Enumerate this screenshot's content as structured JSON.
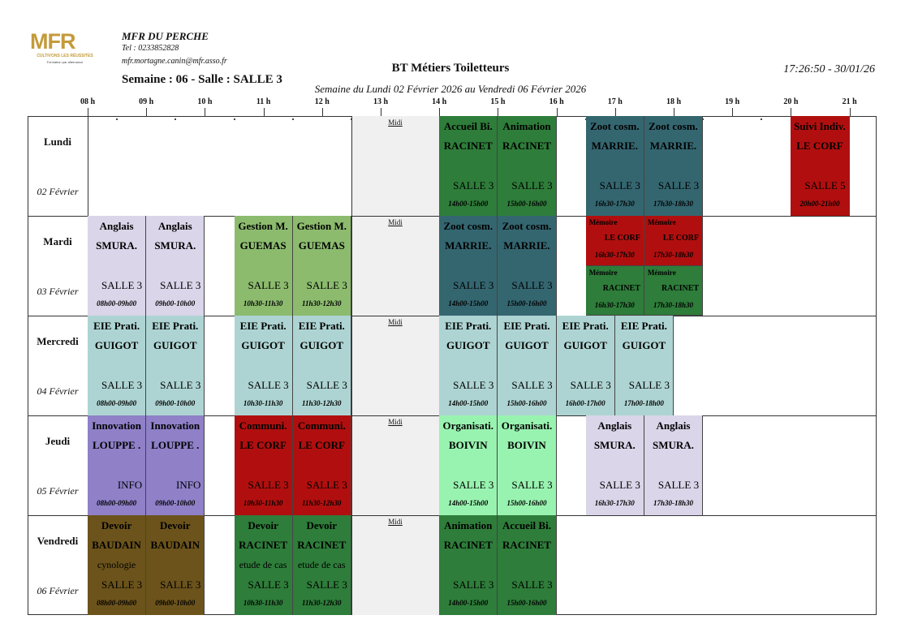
{
  "header": {
    "logo_text": "MFR",
    "logo_tagline": "CULTIVONS LES RÉUSSITES",
    "logo_subline": "Formation par alternance",
    "school_name": "MFR DU PERCHE",
    "tel": "Tel : 0233852828",
    "email": "mfr.mortagne.canin@mfr.asso.fr",
    "semaine": "Semaine : 06 - Salle : SALLE 3",
    "title": "BT Métiers Toiletteurs",
    "subtitle": "Semaine du Lundi 02 Février 2026 au Vendredi 06 Février 2026",
    "timestamp": "17:26:50 - 30/01/26"
  },
  "hours": [
    "08 h",
    "09 h",
    "10 h",
    "11 h",
    "12 h",
    "13 h",
    "14 h",
    "15 h",
    "16 h",
    "17 h",
    "18 h",
    "19 h",
    "20 h",
    "21 h"
  ],
  "midi_label": "Midi",
  "colors": {
    "blue_grey": "#dad5e9",
    "green_light": "#8cbb6e",
    "green_dark": "#2e7d3a",
    "teal_dark": "#346670",
    "teal_light": "#add4d2",
    "purple": "#8f80c8",
    "red": "#b10f0f",
    "mint": "#99f3b0",
    "brown": "#6b531b",
    "midi": "#f0f0f0"
  },
  "days": [
    {
      "name": "Lundi",
      "date": "02 Février",
      "events": [
        {
          "start": 14,
          "end": 15,
          "subject": "Accueil Bi.",
          "teacher": "RACINET",
          "extra": "",
          "room": "SALLE 3",
          "time": "14h00-15h00",
          "color": "#2e7d3a",
          "text_color": "#000"
        },
        {
          "start": 15,
          "end": 16,
          "subject": "Animation",
          "teacher": "RACINET",
          "extra": "",
          "room": "SALLE 3",
          "time": "15h00-16h00",
          "color": "#2e7d3a",
          "text_color": "#000"
        },
        {
          "start": 16.5,
          "end": 17.5,
          "subject": "Zoot cosm.",
          "teacher": "MARRIE.",
          "extra": "",
          "room": "SALLE 3",
          "time": "16h30-17h30",
          "color": "#346670",
          "text_color": "#000"
        },
        {
          "start": 17.5,
          "end": 18.5,
          "subject": "Zoot cosm.",
          "teacher": "MARRIE.",
          "extra": "",
          "room": "SALLE 3",
          "time": "17h30-18h30",
          "color": "#346670",
          "text_color": "#000"
        },
        {
          "start": 20,
          "end": 21,
          "subject": "Suivi Indiv.",
          "teacher": "LE CORF",
          "extra": "",
          "room": "SALLE 5",
          "time": "20h00-21h00",
          "color": "#b10f0f",
          "text_color": "#000"
        }
      ]
    },
    {
      "name": "Mardi",
      "date": "03 Février",
      "events": [
        {
          "start": 8,
          "end": 9,
          "subject": "Anglais",
          "teacher": "SMURA.",
          "extra": "",
          "room": "SALLE 3",
          "time": "08h00-09h00",
          "color": "#dad5e9",
          "text_color": "#000"
        },
        {
          "start": 9,
          "end": 10,
          "subject": "Anglais",
          "teacher": "SMURA.",
          "extra": "",
          "room": "SALLE 3",
          "time": "09h00-10h00",
          "color": "#dad5e9",
          "text_color": "#000"
        },
        {
          "start": 10.5,
          "end": 11.5,
          "subject": "Gestion M.",
          "teacher": "GUEMAS",
          "extra": "",
          "room": "SALLE 3",
          "time": "10h30-11h30",
          "color": "#8cbb6e",
          "text_color": "#000"
        },
        {
          "start": 11.5,
          "end": 12.5,
          "subject": "Gestion M.",
          "teacher": "GUEMAS",
          "extra": "",
          "room": "SALLE 3",
          "time": "11h30-12h30",
          "color": "#8cbb6e",
          "text_color": "#000"
        },
        {
          "start": 14,
          "end": 15,
          "subject": "Zoot cosm.",
          "teacher": "MARRIE.",
          "extra": "",
          "room": "SALLE 3",
          "time": "14h00-15h00",
          "color": "#346670",
          "text_color": "#000"
        },
        {
          "start": 15,
          "end": 16,
          "subject": "Zoot cosm.",
          "teacher": "MARRIE.",
          "extra": "",
          "room": "SALLE 3",
          "time": "15h00-16h00",
          "color": "#346670",
          "text_color": "#000"
        }
      ],
      "half_events": [
        {
          "start": 16.5,
          "end": 17.5,
          "slot": 0,
          "subject": "Mémoire",
          "teacher": "LE CORF",
          "time": "16h30-17h30",
          "color": "#b10f0f",
          "text_color": "#000"
        },
        {
          "start": 17.5,
          "end": 18.5,
          "slot": 0,
          "subject": "Mémoire",
          "teacher": "LE CORF",
          "time": "17h30-18h30",
          "color": "#b10f0f",
          "text_color": "#000"
        },
        {
          "start": 16.5,
          "end": 17.5,
          "slot": 1,
          "subject": "Mémoire",
          "teacher": "RACINET",
          "time": "16h30-17h30",
          "color": "#2e7d3a",
          "text_color": "#000"
        },
        {
          "start": 17.5,
          "end": 18.5,
          "slot": 1,
          "subject": "Mémoire",
          "teacher": "RACINET",
          "time": "17h30-18h30",
          "color": "#2e7d3a",
          "text_color": "#000"
        }
      ]
    },
    {
      "name": "Mercredi",
      "date": "04 Février",
      "events": [
        {
          "start": 8,
          "end": 9,
          "subject": "EIE Prati.",
          "teacher": "GUIGOT",
          "extra": "",
          "room": "SALLE 3",
          "time": "08h00-09h00",
          "color": "#add4d2",
          "text_color": "#000"
        },
        {
          "start": 9,
          "end": 10,
          "subject": "EIE Prati.",
          "teacher": "GUIGOT",
          "extra": "",
          "room": "SALLE 3",
          "time": "09h00-10h00",
          "color": "#add4d2",
          "text_color": "#000"
        },
        {
          "start": 10.5,
          "end": 11.5,
          "subject": "EIE Prati.",
          "teacher": "GUIGOT",
          "extra": "",
          "room": "SALLE 3",
          "time": "10h30-11h30",
          "color": "#add4d2",
          "text_color": "#000"
        },
        {
          "start": 11.5,
          "end": 12.5,
          "subject": "EIE Prati.",
          "teacher": "GUIGOT",
          "extra": "",
          "room": "SALLE 3",
          "time": "11h30-12h30",
          "color": "#add4d2",
          "text_color": "#000"
        },
        {
          "start": 14,
          "end": 15,
          "subject": "EIE Prati.",
          "teacher": "GUIGOT",
          "extra": "",
          "room": "SALLE 3",
          "time": "14h00-15h00",
          "color": "#add4d2",
          "text_color": "#000"
        },
        {
          "start": 15,
          "end": 16,
          "subject": "EIE Prati.",
          "teacher": "GUIGOT",
          "extra": "",
          "room": "SALLE 3",
          "time": "15h00-16h00",
          "color": "#add4d2",
          "text_color": "#000"
        },
        {
          "start": 16,
          "end": 17,
          "subject": "EIE Prati.",
          "teacher": "GUIGOT",
          "extra": "",
          "room": "SALLE 3",
          "time": "16h00-17h00",
          "color": "#add4d2",
          "text_color": "#000"
        },
        {
          "start": 17,
          "end": 18,
          "subject": "EIE Prati.",
          "teacher": "GUIGOT",
          "extra": "",
          "room": "SALLE 3",
          "time": "17h00-18h00",
          "color": "#add4d2",
          "text_color": "#000"
        }
      ]
    },
    {
      "name": "Jeudi",
      "date": "05 Février",
      "events": [
        {
          "start": 8,
          "end": 9,
          "subject": "Innovation",
          "teacher": "LOUPPE .",
          "extra": "",
          "room": "INFO",
          "time": "08h00-09h00",
          "color": "#8f80c8",
          "text_color": "#000"
        },
        {
          "start": 9,
          "end": 10,
          "subject": "Innovation",
          "teacher": "LOUPPE .",
          "extra": "",
          "room": "INFO",
          "time": "09h00-10h00",
          "color": "#8f80c8",
          "text_color": "#000"
        },
        {
          "start": 10.5,
          "end": 11.5,
          "subject": "Communi.",
          "teacher": "LE CORF",
          "extra": "",
          "room": "SALLE 3",
          "time": "10h30-11h30",
          "color": "#b10f0f",
          "text_color": "#000"
        },
        {
          "start": 11.5,
          "end": 12.5,
          "subject": "Communi.",
          "teacher": "LE CORF",
          "extra": "",
          "room": "SALLE 3",
          "time": "11h30-12h30",
          "color": "#b10f0f",
          "text_color": "#000"
        },
        {
          "start": 14,
          "end": 15,
          "subject": "Organisati.",
          "teacher": "BOIVIN",
          "extra": "",
          "room": "SALLE 3",
          "time": "14h00-15h00",
          "color": "#99f3b0",
          "text_color": "#000"
        },
        {
          "start": 15,
          "end": 16,
          "subject": "Organisati.",
          "teacher": "BOIVIN",
          "extra": "",
          "room": "SALLE 3",
          "time": "15h00-16h00",
          "color": "#99f3b0",
          "text_color": "#000"
        },
        {
          "start": 16.5,
          "end": 17.5,
          "subject": "Anglais",
          "teacher": "SMURA.",
          "extra": "",
          "room": "SALLE 3",
          "time": "16h30-17h30",
          "color": "#dad5e9",
          "text_color": "#000"
        },
        {
          "start": 17.5,
          "end": 18.5,
          "subject": "Anglais",
          "teacher": "SMURA.",
          "extra": "",
          "room": "SALLE 3",
          "time": "17h30-18h30",
          "color": "#dad5e9",
          "text_color": "#000"
        }
      ]
    },
    {
      "name": "Vendredi",
      "date": "06 Février",
      "events": [
        {
          "start": 8,
          "end": 9,
          "subject": "Devoir",
          "teacher": "BAUDAIN",
          "extra": "cynologie",
          "room": "SALLE 3",
          "time": "08h00-09h00",
          "color": "#6b531b",
          "text_color": "#000"
        },
        {
          "start": 9,
          "end": 10,
          "subject": "Devoir",
          "teacher": "BAUDAIN",
          "extra": "",
          "room": "SALLE 3",
          "time": "09h00-10h00",
          "color": "#6b531b",
          "text_color": "#000"
        },
        {
          "start": 10.5,
          "end": 11.5,
          "subject": "Devoir",
          "teacher": "RACINET",
          "extra": "etude de cas",
          "room": "SALLE 3",
          "time": "10h30-11h30",
          "color": "#2e7d3a",
          "text_color": "#000"
        },
        {
          "start": 11.5,
          "end": 12.5,
          "subject": "Devoir",
          "teacher": "RACINET",
          "extra": "etude de cas",
          "room": "SALLE 3",
          "time": "11h30-12h30",
          "color": "#2e7d3a",
          "text_color": "#000"
        },
        {
          "start": 14,
          "end": 15,
          "subject": "Animation",
          "teacher": "RACINET",
          "extra": "",
          "room": "SALLE 3",
          "time": "14h00-15h00",
          "color": "#2e7d3a",
          "text_color": "#000"
        },
        {
          "start": 15,
          "end": 16,
          "subject": "Accueil Bi.",
          "teacher": "RACINET",
          "extra": "",
          "room": "SALLE 3",
          "time": "15h00-16h00",
          "color": "#2e7d3a",
          "text_color": "#000"
        }
      ]
    }
  ]
}
